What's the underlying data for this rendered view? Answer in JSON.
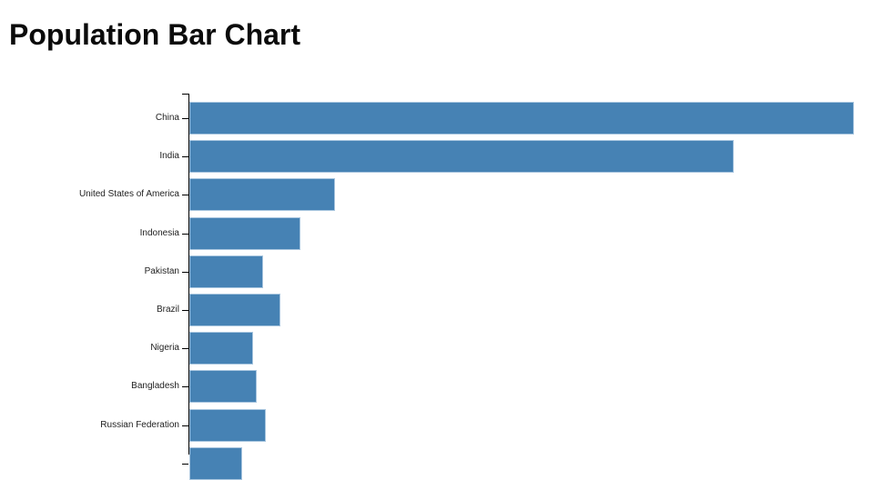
{
  "page": {
    "background_color": "#ffffff"
  },
  "chart_data": {
    "type": "bar",
    "orientation": "horizontal",
    "title": "Population Bar Chart",
    "xlabel": "",
    "ylabel": "",
    "categories": [
      "China",
      "India",
      "United States of America",
      "Indonesia",
      "Pakistan",
      "Brazil",
      "Nigeria",
      "Bangladesh",
      "Russian Federation",
      ""
    ],
    "values": [
      1263,
      1035,
      277,
      211,
      140,
      173,
      121,
      128,
      145,
      100
    ],
    "values_unit": "millions of people (estimated from bar lengths; no numeric axis visible in view)",
    "xlim": [
      0,
      1263
    ],
    "grid": false,
    "legend": false,
    "notes": "Tenth bar is only partially visible at the bottom edge of the viewport; its category label is cut off",
    "colors": {
      "bar_fill": "#4682b4",
      "bar_border": "#a9c6df",
      "axis": "#000000",
      "label_text": "#222222",
      "title_text": "#0b0b0b"
    }
  }
}
